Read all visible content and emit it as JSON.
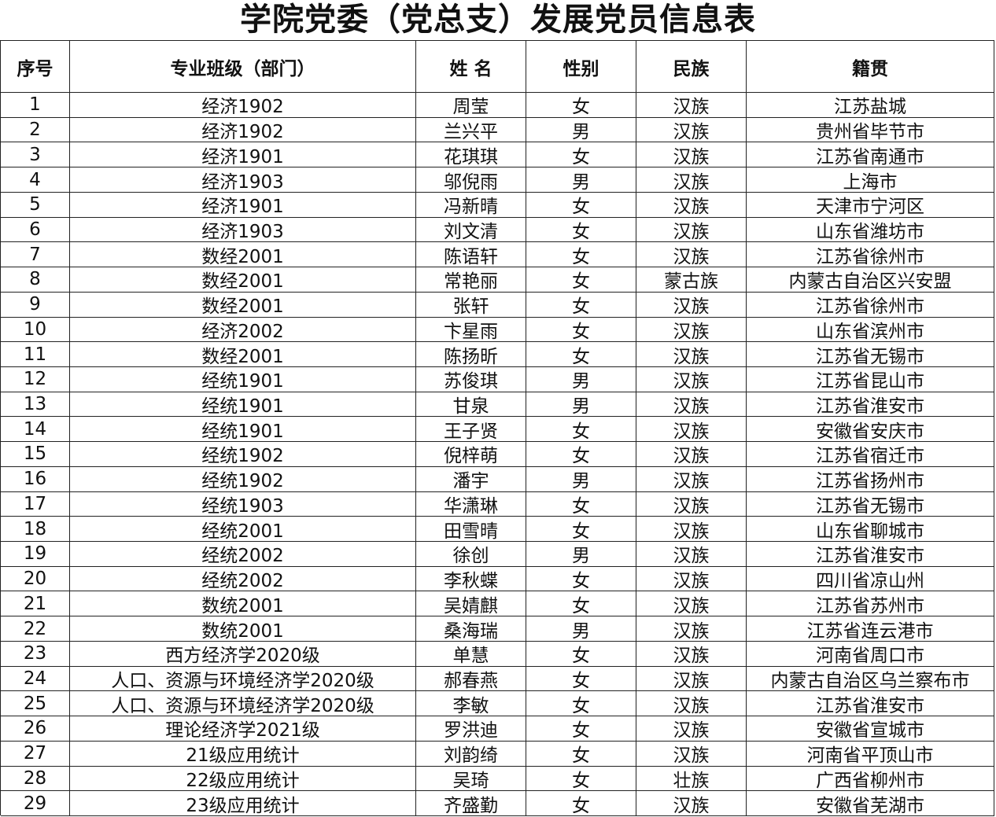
{
  "header": {
    "title": "学院党委（党总支）发展党员信息表"
  },
  "table": {
    "columns": [
      "序号",
      "专业班级（部门）",
      "姓 名",
      "性别",
      "民族",
      "籍贯"
    ],
    "rows": [
      [
        "1",
        "经济1902",
        "周莹",
        "女",
        "汉族",
        "江苏盐城"
      ],
      [
        "2",
        "经济1902",
        "兰兴平",
        "男",
        "汉族",
        "贵州省毕节市"
      ],
      [
        "3",
        "经济1901",
        "花琪琪",
        "女",
        "汉族",
        "江苏省南通市"
      ],
      [
        "4",
        "经济1903",
        "邬倪雨",
        "男",
        "汉族",
        "上海市"
      ],
      [
        "5",
        "经济1901",
        "冯新晴",
        "女",
        "汉族",
        "天津市宁河区"
      ],
      [
        "6",
        "经济1903",
        "刘文清",
        "女",
        "汉族",
        "山东省潍坊市"
      ],
      [
        "7",
        "数经2001",
        "陈语轩",
        "女",
        "汉族",
        "江苏省徐州市"
      ],
      [
        "8",
        "数经2001",
        "常艳丽",
        "女",
        "蒙古族",
        "内蒙古自治区兴安盟"
      ],
      [
        "9",
        "数经2001",
        "张轩",
        "女",
        "汉族",
        "江苏省徐州市"
      ],
      [
        "10",
        "经济2002",
        "卞星雨",
        "女",
        "汉族",
        "山东省滨州市"
      ],
      [
        "11",
        "数经2001",
        "陈扬昕",
        "女",
        "汉族",
        "江苏省无锡市"
      ],
      [
        "12",
        "经统1901",
        "苏俊琪",
        "男",
        "汉族",
        "江苏省昆山市"
      ],
      [
        "13",
        "经统1901",
        "甘泉",
        "男",
        "汉族",
        "江苏省淮安市"
      ],
      [
        "14",
        "经统1901",
        "王子贤",
        "女",
        "汉族",
        "安徽省安庆市"
      ],
      [
        "15",
        "经统1902",
        "倪梓萌",
        "女",
        "汉族",
        "江苏省宿迁市"
      ],
      [
        "16",
        "经统1902",
        "潘宇",
        "男",
        "汉族",
        "江苏省扬州市"
      ],
      [
        "17",
        "经统1903",
        "华潇琳",
        "女",
        "汉族",
        "江苏省无锡市"
      ],
      [
        "18",
        "经统2001",
        "田雪晴",
        "女",
        "汉族",
        "山东省聊城市"
      ],
      [
        "19",
        "经统2002",
        "徐创",
        "男",
        "汉族",
        "江苏省淮安市"
      ],
      [
        "20",
        "经统2002",
        "李秋蝶",
        "女",
        "汉族",
        "四川省凉山州"
      ],
      [
        "21",
        "数统2001",
        "吴婧麒",
        "女",
        "汉族",
        "江苏省苏州市"
      ],
      [
        "22",
        "数统2001",
        "桑海瑞",
        "男",
        "汉族",
        "江苏省连云港市"
      ],
      [
        "23",
        "西方经济学2020级",
        "单慧",
        "女",
        "汉族",
        "河南省周口市"
      ],
      [
        "24",
        "人口、资源与环境经济学2020级",
        "郝春燕",
        "女",
        "汉族",
        "内蒙古自治区乌兰察布市"
      ],
      [
        "25",
        "人口、资源与环境经济学2020级",
        "李敏",
        "女",
        "汉族",
        "江苏省淮安市"
      ],
      [
        "26",
        "理论经济学2021级",
        "罗洪迪",
        "女",
        "汉族",
        "安徽省宣城市"
      ],
      [
        "27",
        "21级应用统计",
        "刘韵绮",
        "女",
        "汉族",
        "河南省平顶山市"
      ],
      [
        "28",
        "22级应用统计",
        "吴琦",
        "女",
        "壮族",
        "广西省柳州市"
      ],
      [
        "29",
        "23级应用统计",
        "齐盛勤",
        "女",
        "汉族",
        "安徽省芜湖市"
      ]
    ]
  }
}
